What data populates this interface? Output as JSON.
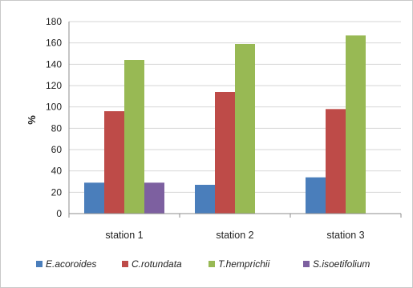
{
  "chart_data": {
    "type": "bar",
    "categories": [
      "station 1",
      "station 2",
      "station 3"
    ],
    "series": [
      {
        "name": "E.acoroides",
        "values": [
          29,
          27,
          34
        ],
        "color": "#4a7ebb"
      },
      {
        "name": "C.rotundata",
        "values": [
          96,
          114,
          98
        ],
        "color": "#be4b48"
      },
      {
        "name": "T.hemprichii",
        "values": [
          144,
          159,
          167
        ],
        "color": "#98b954"
      },
      {
        "name": "S.isoetifolium",
        "values": [
          29,
          null,
          null
        ],
        "color": "#7d60a0"
      }
    ],
    "ylabel": "%",
    "ylim": [
      0,
      180
    ],
    "yticks": [
      0,
      20,
      40,
      60,
      80,
      100,
      120,
      140,
      160,
      180
    ],
    "grid": true,
    "legend": "bottom"
  }
}
